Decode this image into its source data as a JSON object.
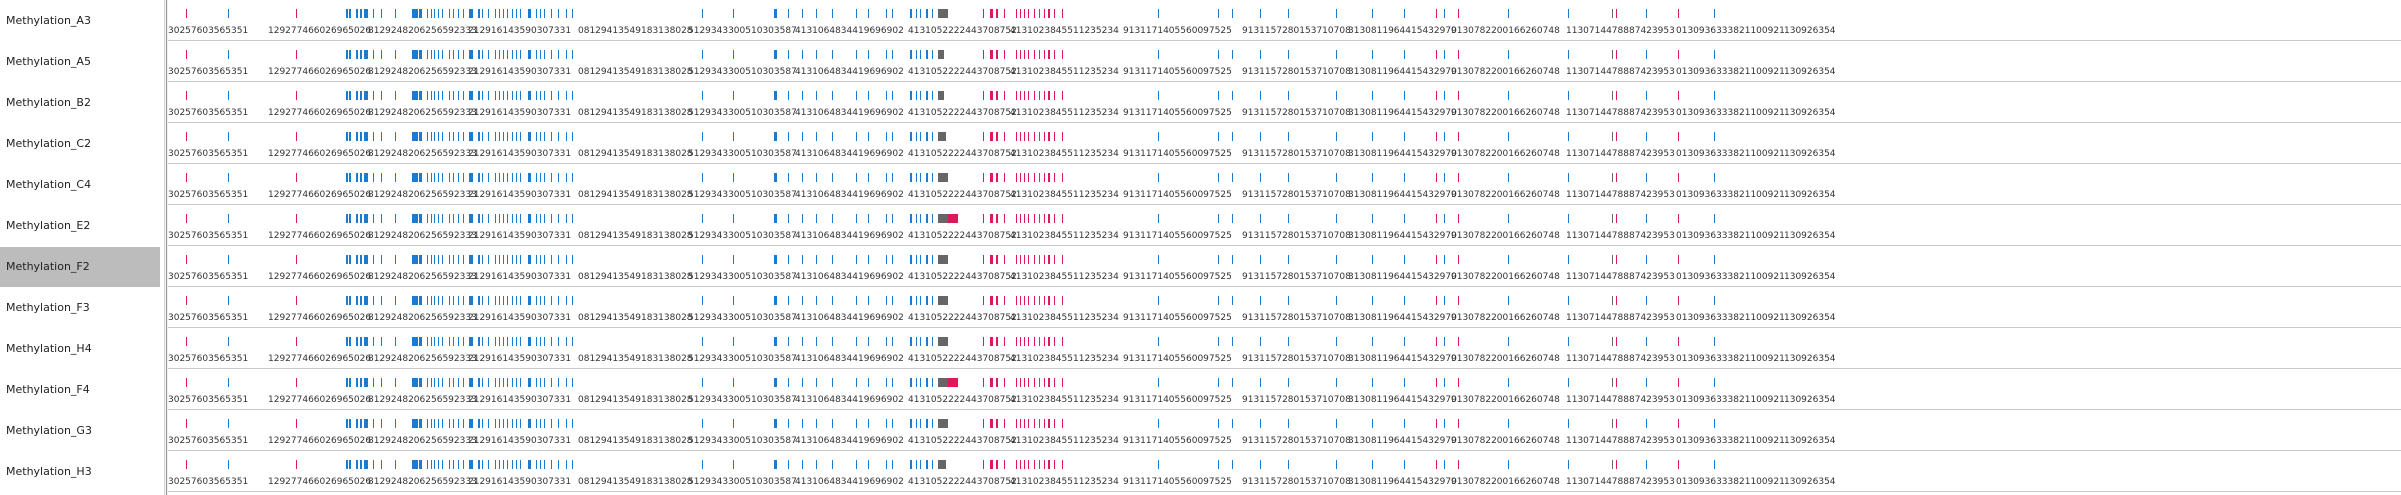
{
  "tracks": [
    "Methylation_A3",
    "Methylation_A5",
    "Methylation_B2",
    "Methylation_C2",
    "Methylation_C4",
    "Methylation_E2",
    "Methylation_F2",
    "Methylation_F3",
    "Methylation_H4",
    "Methylation_F4",
    "Methylation_G3",
    "Methylation_H3"
  ],
  "selected_track": "Methylation_F2",
  "coordinate_labels": [
    "30257603565351",
    "129277466026965026",
    "8129248206256592333",
    "212916143590307331",
    "08129413549183138028",
    "5129343300510303587",
    "4131064834419696902",
    "4131052222443708752",
    "4131023845511235234",
    "9131171405560097525",
    "9131157280153710708",
    "3130811964415432970",
    "9130782200166260748",
    "1130714478887423953",
    "0130936333821100921",
    "130926354"
  ],
  "colors": {
    "hypo": "#1a7bd1",
    "hyper": "#e0185a",
    "nodata": "#666666",
    "selected_bg": "#bcbcbc"
  }
}
